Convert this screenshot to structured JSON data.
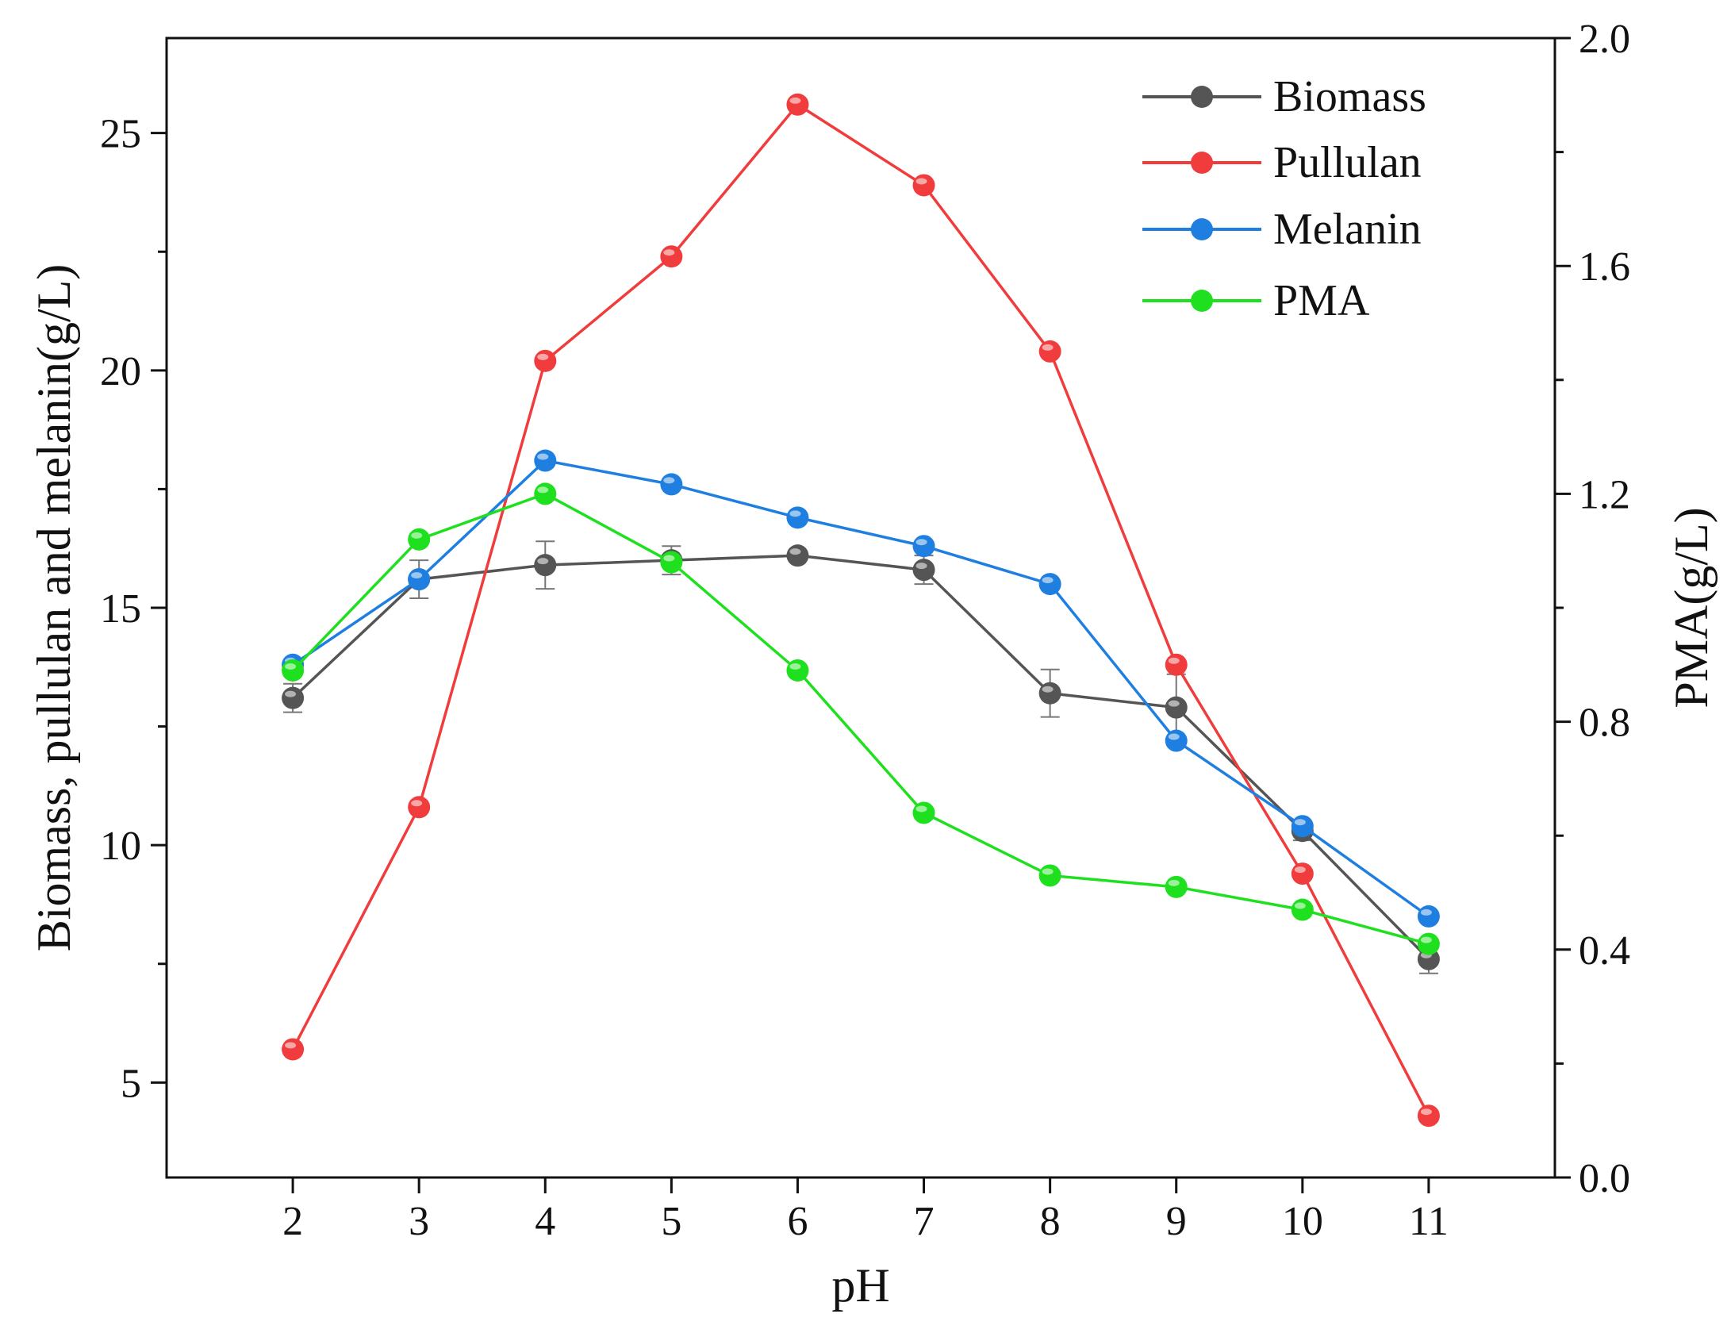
{
  "chart_data": {
    "type": "line",
    "title": "",
    "xlabel": "pH",
    "ylabel_left": "Biomass, pullulan and melanin(g/L)",
    "ylabel_right": "PMA(g/L)",
    "x": [
      2,
      3,
      4,
      5,
      6,
      7,
      8,
      9,
      10,
      11
    ],
    "xlim": [
      1,
      12
    ],
    "ylim_left": [
      3,
      27
    ],
    "ylim_right": [
      0.0,
      2.0
    ],
    "xticks": [
      "2",
      "3",
      "4",
      "5",
      "6",
      "7",
      "8",
      "9",
      "10",
      "11"
    ],
    "yticks_left": [
      "5",
      "10",
      "15",
      "20",
      "25"
    ],
    "yticks_right": [
      "0.0",
      "0.4",
      "0.8",
      "1.2",
      "1.6",
      "2.0"
    ],
    "legend_position": "top-right",
    "series": [
      {
        "name": "Biomass",
        "axis": "left",
        "color": "#555555",
        "values": [
          13.1,
          15.6,
          15.9,
          16.0,
          16.1,
          15.8,
          13.2,
          12.9,
          10.3,
          7.6
        ],
        "errors": [
          0.3,
          0.4,
          0.5,
          0.3,
          0.0,
          0.3,
          0.5,
          0.7,
          0.2,
          0.3
        ]
      },
      {
        "name": "Pullulan",
        "axis": "left",
        "color": "#f03c3c",
        "values": [
          5.7,
          10.8,
          20.2,
          22.4,
          25.6,
          23.9,
          20.4,
          13.8,
          9.4,
          4.3
        ]
      },
      {
        "name": "Melanin",
        "axis": "left",
        "color": "#1f7fe0",
        "values": [
          13.8,
          15.6,
          18.1,
          17.6,
          16.9,
          16.3,
          15.5,
          12.2,
          10.4,
          8.5
        ]
      },
      {
        "name": "PMA",
        "axis": "right",
        "color": "#1ee01e",
        "values": [
          0.89,
          1.12,
          1.2,
          1.08,
          0.89,
          0.64,
          0.53,
          0.51,
          0.47,
          0.41
        ]
      }
    ]
  }
}
